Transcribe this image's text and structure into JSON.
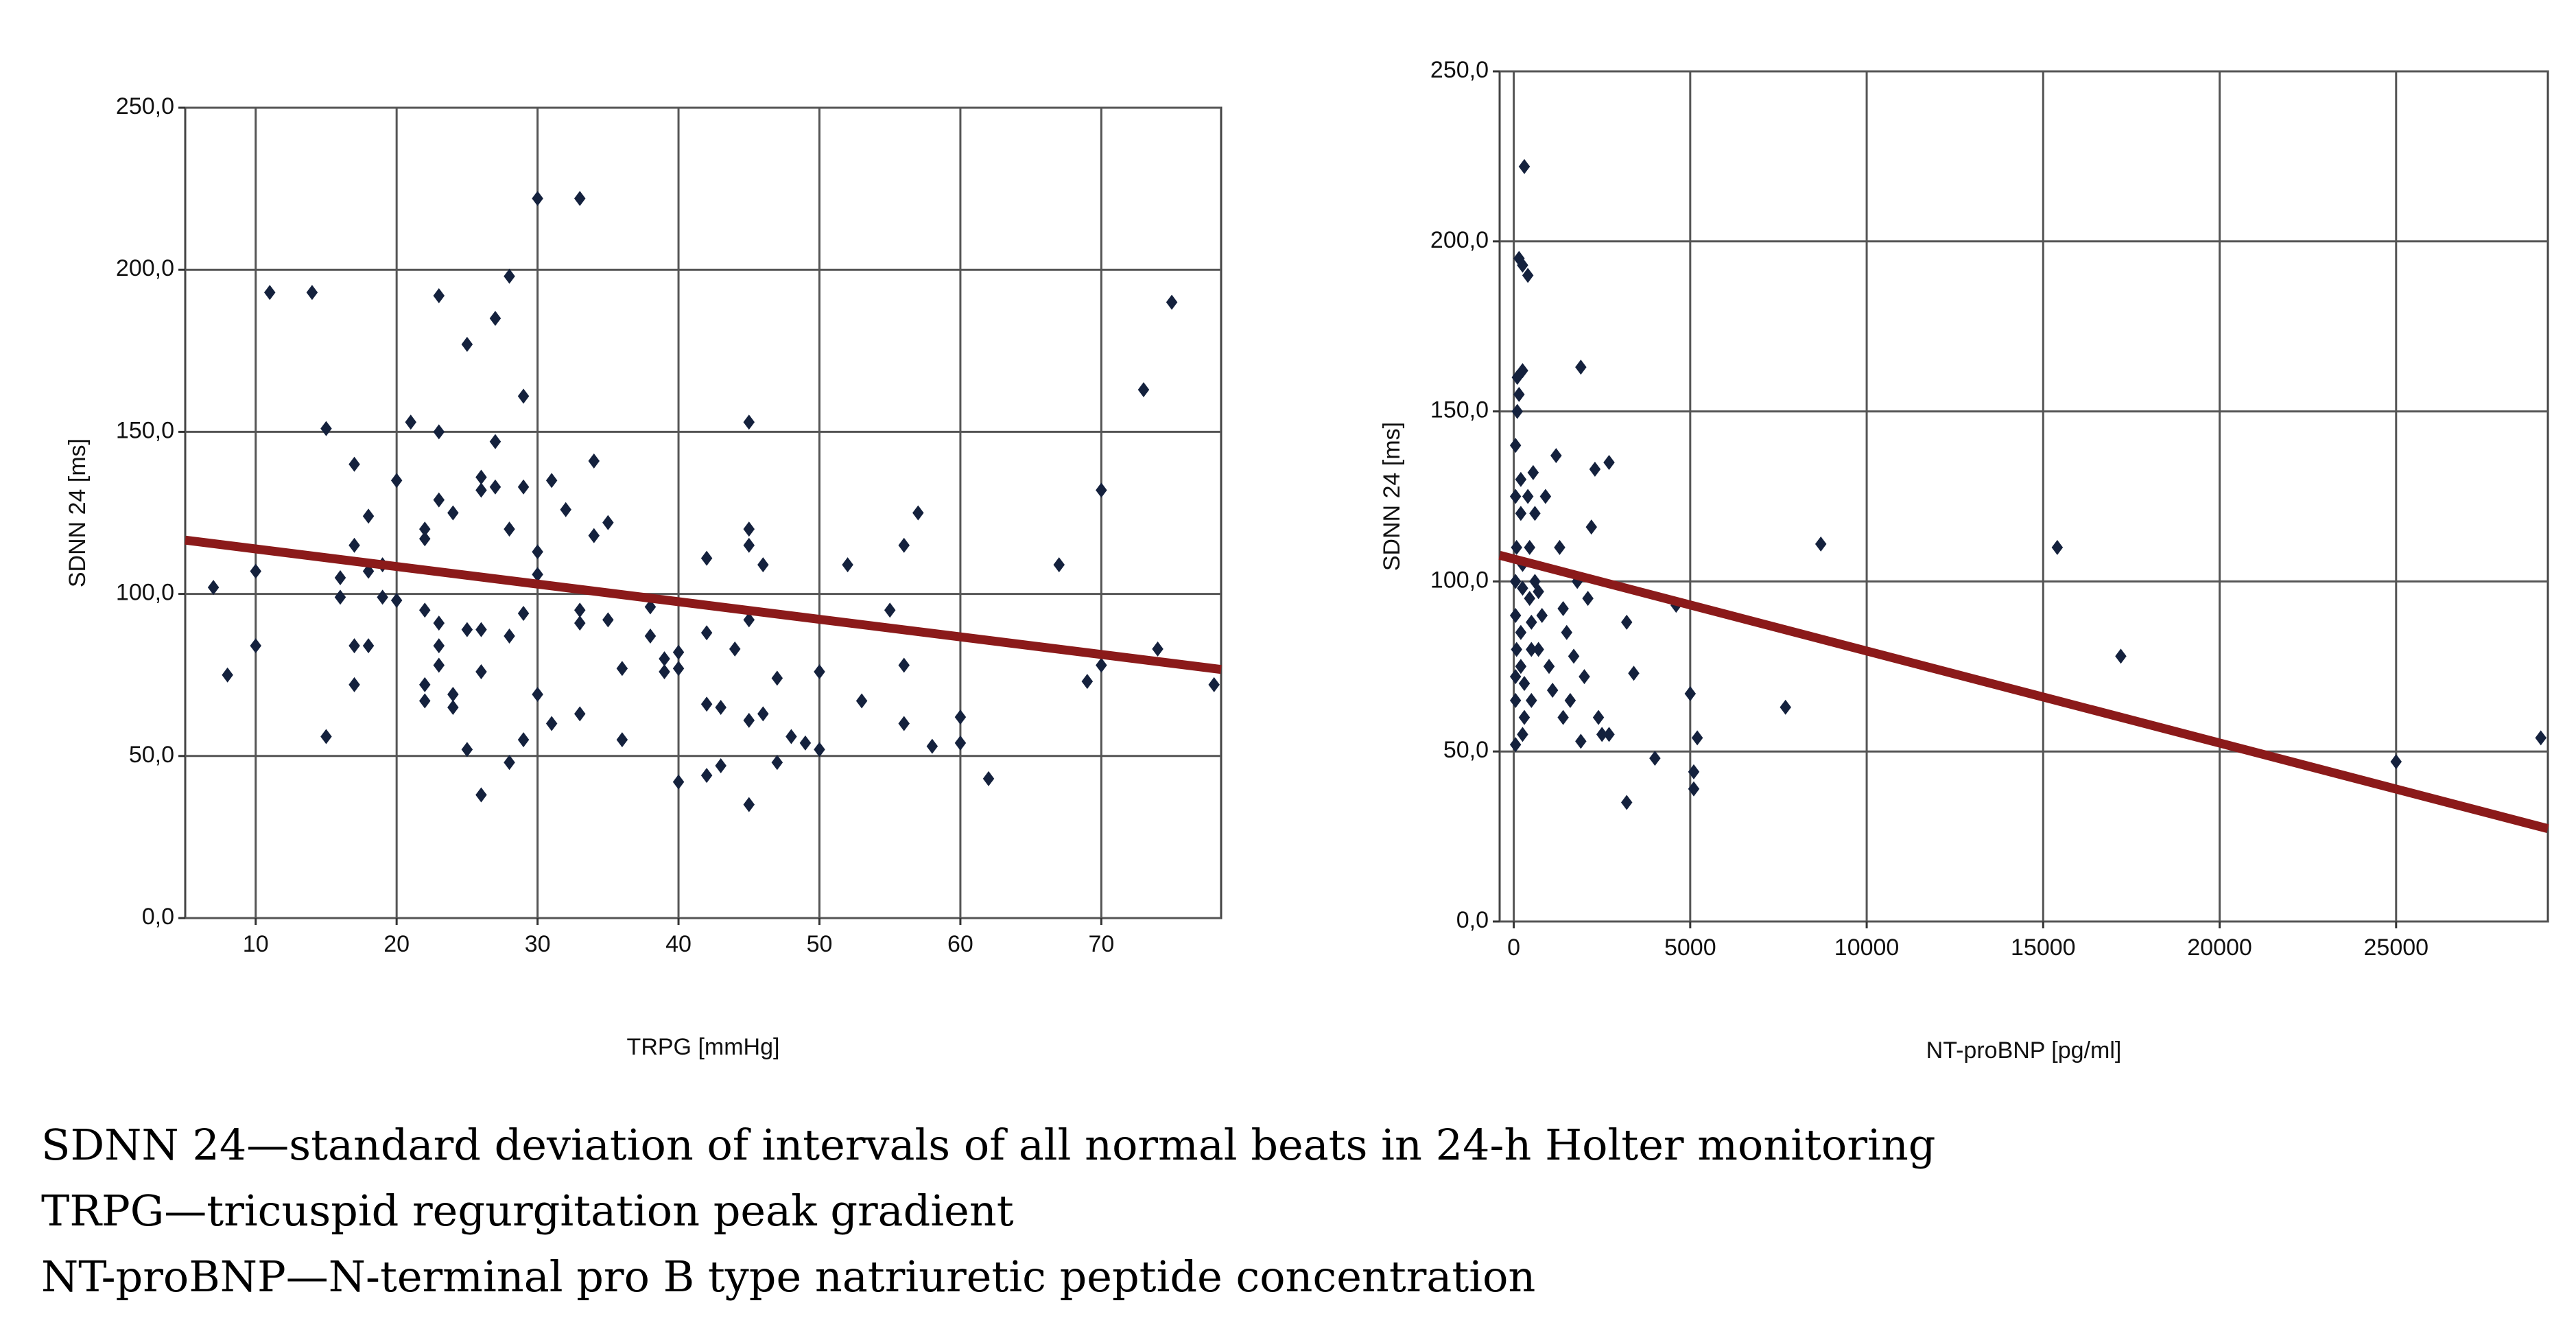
{
  "chart_data": [
    {
      "type": "scatter",
      "x_label": "TRPG [mmHg]",
      "y_label": "SDNN 24 [ms]",
      "color": "#14213d",
      "xlim": [
        5,
        78.5
      ],
      "xticks": [
        10,
        20,
        30,
        40,
        50,
        60,
        70
      ],
      "ylim": [
        0,
        250
      ],
      "yticks": [
        {
          "value": 0,
          "label": "0,0"
        },
        {
          "value": 50,
          "label": "50,0"
        },
        {
          "value": 100,
          "label": "100,0"
        },
        {
          "value": 150,
          "label": "150,0"
        },
        {
          "value": 200,
          "label": "200,0"
        },
        {
          "value": 250,
          "label": "250,0"
        }
      ],
      "grid": true,
      "x": [
        7,
        8,
        10,
        10,
        11,
        14,
        15,
        15,
        16,
        16,
        17,
        17,
        17,
        17,
        18,
        18,
        18,
        19,
        19,
        20,
        20,
        21,
        22,
        22,
        22,
        22,
        22,
        23,
        23,
        23,
        23,
        23,
        23,
        24,
        24,
        24,
        25,
        25,
        25,
        26,
        26,
        26,
        26,
        26,
        27,
        27,
        27,
        28,
        28,
        28,
        28,
        29,
        29,
        29,
        29,
        30,
        30,
        30,
        30,
        31,
        31,
        32,
        33,
        33,
        33,
        33,
        34,
        34,
        35,
        35,
        36,
        36,
        38,
        38,
        39,
        39,
        40,
        40,
        40,
        42,
        42,
        42,
        42,
        43,
        43,
        44,
        45,
        45,
        45,
        45,
        45,
        45,
        46,
        46,
        47,
        47,
        48,
        49,
        50,
        50,
        52,
        53,
        55,
        56,
        56,
        56,
        57,
        58,
        60,
        60,
        62,
        67,
        69,
        70,
        70,
        73,
        74,
        75,
        78
      ],
      "values": [
        102,
        75,
        107,
        84,
        193,
        193,
        151,
        56,
        105,
        99,
        140,
        115,
        84,
        72,
        124,
        107,
        84,
        99,
        109,
        135,
        98,
        153,
        120,
        117,
        95,
        72,
        67,
        192,
        150,
        129,
        91,
        84,
        78,
        125,
        69,
        65,
        177,
        89,
        52,
        136,
        132,
        89,
        76,
        38,
        185,
        147,
        133,
        198,
        120,
        87,
        48,
        161,
        133,
        94,
        55,
        222,
        113,
        106,
        69,
        135,
        60,
        126,
        222,
        95,
        91,
        63,
        141,
        118,
        122,
        92,
        77,
        55,
        96,
        87,
        80,
        76,
        82,
        77,
        42,
        111,
        88,
        66,
        44,
        65,
        47,
        83,
        153,
        120,
        115,
        92,
        61,
        35,
        109,
        63,
        74,
        48,
        56,
        54,
        76,
        52,
        109,
        67,
        95,
        115,
        78,
        60,
        125,
        53,
        62,
        54,
        43,
        109,
        73,
        132,
        78,
        163,
        83,
        190,
        72
      ],
      "trend": {
        "x": [
          5,
          78.5
        ],
        "values": [
          116.6,
          76.7
        ],
        "color": "#8b1a1a"
      }
    },
    {
      "type": "scatter",
      "x_label": "NT-proBNP [pg/ml]",
      "y_label": "SDNN 24 [ms]",
      "color": "#14213d",
      "xlim": [
        -400,
        29300
      ],
      "xticks": [
        0,
        5000,
        10000,
        15000,
        20000,
        25000
      ],
      "ylim": [
        0,
        250
      ],
      "yticks": [
        {
          "value": 0,
          "label": "0,0"
        },
        {
          "value": 50,
          "label": "50,0"
        },
        {
          "value": 100,
          "label": "100,0"
        },
        {
          "value": 150,
          "label": "150,0"
        },
        {
          "value": 200,
          "label": "200,0"
        },
        {
          "value": 250,
          "label": "250,0"
        }
      ],
      "grid": true,
      "x": [
        50,
        50,
        50,
        80,
        50,
        50,
        80,
        50,
        50,
        100,
        100,
        150,
        150,
        250,
        250,
        300,
        200,
        200,
        250,
        250,
        200,
        200,
        300,
        300,
        250,
        400,
        400,
        450,
        450,
        500,
        500,
        500,
        550,
        600,
        600,
        700,
        700,
        800,
        900,
        1000,
        1100,
        1200,
        1300,
        1400,
        1400,
        1500,
        1600,
        1700,
        1800,
        1900,
        1900,
        2000,
        2100,
        2200,
        2300,
        2400,
        2500,
        2700,
        2700,
        3200,
        3200,
        3400,
        4000,
        4600,
        5000,
        5100,
        5100,
        5200,
        7700,
        8700,
        15400,
        17200,
        25000,
        29100
      ],
      "values": [
        52,
        65,
        72,
        80,
        90,
        100,
        110,
        125,
        140,
        150,
        160,
        195,
        155,
        193,
        162,
        222,
        130,
        120,
        105,
        98,
        85,
        75,
        70,
        60,
        55,
        190,
        125,
        110,
        95,
        88,
        80,
        65,
        132,
        120,
        100,
        97,
        80,
        90,
        125,
        75,
        68,
        137,
        110,
        92,
        60,
        85,
        65,
        78,
        100,
        163,
        53,
        72,
        95,
        116,
        133,
        60,
        55,
        135,
        55,
        88,
        35,
        73,
        48,
        93,
        67,
        44,
        39,
        54,
        63,
        111,
        110,
        78,
        47,
        54
      ],
      "trend": {
        "x": [
          -400,
          29300
        ],
        "values": [
          107.7,
          27.3
        ],
        "color": "#8b1a1a"
      }
    }
  ],
  "caption": [
    "SDNN 24—standard deviation of intervals of all normal beats in 24-h Holter monitoring",
    "TRPG—tricuspid regurgitation peak gradient",
    "NT-proBNP—N-terminal pro B type natriuretic peptide concentration"
  ]
}
